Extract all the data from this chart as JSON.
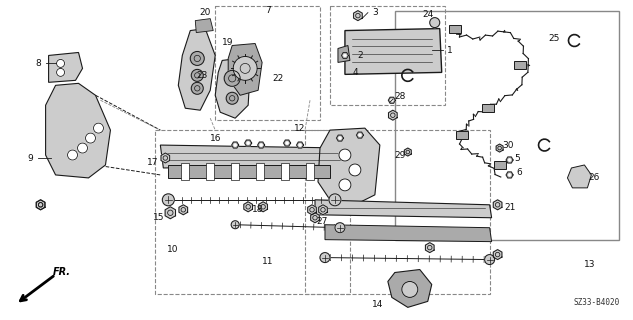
{
  "diagram_code": "SZ33-B4020",
  "direction_label": "FR.",
  "background_color": "#ffffff",
  "line_color": "#1a1a1a",
  "figsize": [
    6.33,
    3.2
  ],
  "dpi": 100
}
